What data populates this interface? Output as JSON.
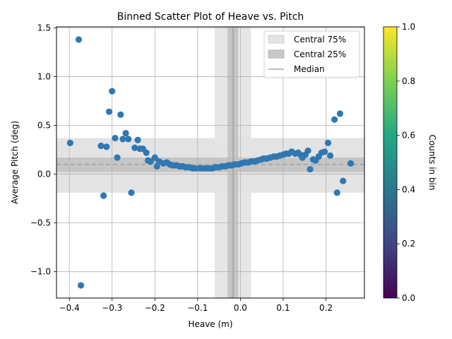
{
  "chart_data": {
    "type": "scatter",
    "title": "Binned Scatter Plot of Heave vs. Pitch",
    "xlabel": "Heave (m)",
    "ylabel": "Average Pitch (deg)",
    "xlim": [
      -0.43,
      0.29
    ],
    "ylim": [
      -1.27,
      1.51
    ],
    "xticks": [
      -0.4,
      -0.3,
      -0.2,
      -0.1,
      0.0,
      0.1,
      0.2
    ],
    "xtick_labels": [
      "−0.4",
      "−0.3",
      "−0.2",
      "−0.1",
      "0.0",
      "0.1",
      "0.2"
    ],
    "yticks": [
      -1.0,
      -0.5,
      0.0,
      0.5,
      1.0,
      1.5
    ],
    "ytick_labels": [
      "−1.0",
      "−0.5",
      "0.0",
      "0.5",
      "1.0",
      "1.5"
    ],
    "grid": true,
    "marker_color": "#2f78b2",
    "points": [
      [
        -0.398,
        0.32
      ],
      [
        -0.378,
        1.38
      ],
      [
        -0.373,
        -1.14
      ],
      [
        -0.326,
        0.29
      ],
      [
        -0.32,
        -0.22
      ],
      [
        -0.313,
        0.28
      ],
      [
        -0.307,
        0.64
      ],
      [
        -0.3,
        0.85
      ],
      [
        -0.293,
        0.37
      ],
      [
        -0.288,
        0.17
      ],
      [
        -0.28,
        0.61
      ],
      [
        -0.275,
        0.36
      ],
      [
        -0.268,
        0.42
      ],
      [
        -0.262,
        0.36
      ],
      [
        -0.255,
        -0.19
      ],
      [
        -0.247,
        0.27
      ],
      [
        -0.24,
        0.35
      ],
      [
        -0.235,
        0.26
      ],
      [
        -0.228,
        0.26
      ],
      [
        -0.22,
        0.22
      ],
      [
        -0.216,
        0.14
      ],
      [
        -0.21,
        0.13
      ],
      [
        -0.2,
        0.17
      ],
      [
        -0.195,
        0.08
      ],
      [
        -0.19,
        0.13
      ],
      [
        -0.18,
        0.11
      ],
      [
        -0.172,
        0.12
      ],
      [
        -0.165,
        0.1
      ],
      [
        -0.158,
        0.09
      ],
      [
        -0.15,
        0.09
      ],
      [
        -0.142,
        0.08
      ],
      [
        -0.135,
        0.08
      ],
      [
        -0.128,
        0.07
      ],
      [
        -0.12,
        0.07
      ],
      [
        -0.112,
        0.06
      ],
      [
        -0.105,
        0.06
      ],
      [
        -0.095,
        0.06
      ],
      [
        -0.088,
        0.06
      ],
      [
        -0.08,
        0.06
      ],
      [
        -0.072,
        0.06
      ],
      [
        -0.065,
        0.06
      ],
      [
        -0.058,
        0.07
      ],
      [
        -0.05,
        0.07
      ],
      [
        -0.043,
        0.08
      ],
      [
        -0.035,
        0.08
      ],
      [
        -0.028,
        0.09
      ],
      [
        -0.02,
        0.09
      ],
      [
        -0.013,
        0.1
      ],
      [
        -0.005,
        0.1
      ],
      [
        0.002,
        0.11
      ],
      [
        0.01,
        0.12
      ],
      [
        0.018,
        0.12
      ],
      [
        0.025,
        0.13
      ],
      [
        0.033,
        0.13
      ],
      [
        0.04,
        0.14
      ],
      [
        0.048,
        0.15
      ],
      [
        0.055,
        0.16
      ],
      [
        0.062,
        0.16
      ],
      [
        0.07,
        0.17
      ],
      [
        0.078,
        0.18
      ],
      [
        0.085,
        0.18
      ],
      [
        0.092,
        0.19
      ],
      [
        0.1,
        0.2
      ],
      [
        0.107,
        0.21
      ],
      [
        0.113,
        0.21
      ],
      [
        0.12,
        0.23
      ],
      [
        0.128,
        0.21
      ],
      [
        0.135,
        0.22
      ],
      [
        0.14,
        0.2
      ],
      [
        0.145,
        0.17
      ],
      [
        0.152,
        0.2
      ],
      [
        0.158,
        0.24
      ],
      [
        0.163,
        0.05
      ],
      [
        0.17,
        0.15
      ],
      [
        0.176,
        0.14
      ],
      [
        0.183,
        0.18
      ],
      [
        0.19,
        0.22
      ],
      [
        0.197,
        0.23
      ],
      [
        0.205,
        0.32
      ],
      [
        0.21,
        0.19
      ],
      [
        0.22,
        0.56
      ],
      [
        0.226,
        -0.19
      ],
      [
        0.233,
        0.62
      ],
      [
        0.24,
        -0.07
      ],
      [
        0.258,
        0.11
      ]
    ],
    "bands": {
      "x_central75": [
        -0.06,
        0.025
      ],
      "x_central25": [
        -0.03,
        -0.005
      ],
      "x_median": -0.017,
      "y_central75": [
        -0.19,
        0.37
      ],
      "y_central25": [
        0.02,
        0.17
      ],
      "y_median": 0.1
    },
    "legend": {
      "position": "top-right",
      "entries": [
        "Central 75%",
        "Central 25%",
        "Median"
      ]
    },
    "colorbar": {
      "label": "Counts in bin",
      "ticks": [
        "0.0",
        "0.2",
        "0.4",
        "0.6",
        "0.8",
        "1.0"
      ],
      "colors": [
        "#440154",
        "#414487",
        "#2a788e",
        "#22a884",
        "#7ad151",
        "#fde725"
      ]
    }
  }
}
